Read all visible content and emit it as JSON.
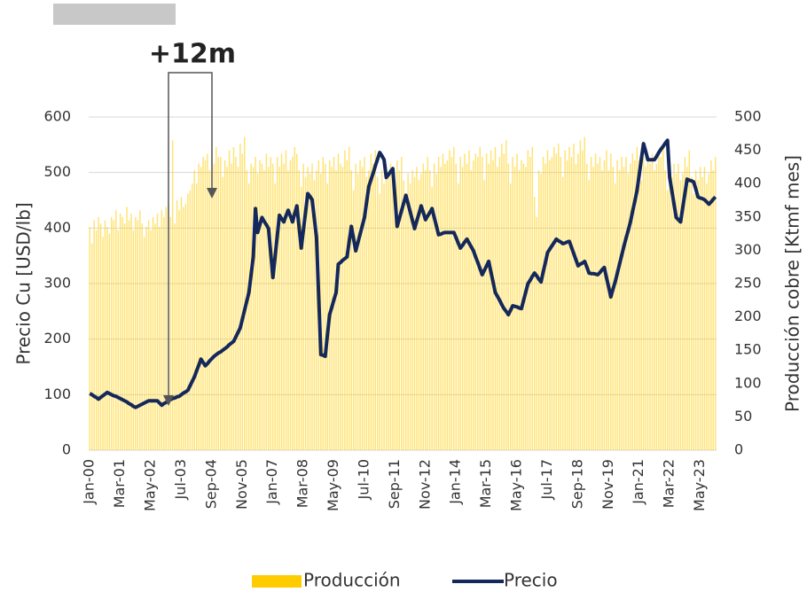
{
  "chart_data": {
    "type": "bar",
    "annotation": "+12m",
    "ylabel": "Precio Cu [USD/lb]",
    "y2label": "Producción cobre [Ktmf mes]",
    "ylim": [
      0,
      600
    ],
    "yticks": [
      0,
      100,
      200,
      300,
      400,
      500,
      600
    ],
    "y2lim": [
      0,
      500
    ],
    "y2ticks": [
      0,
      50,
      100,
      150,
      200,
      250,
      300,
      350,
      400,
      450,
      500
    ],
    "grid": true,
    "legend": "bottom",
    "categories": [
      "Jan-00",
      null,
      null,
      null,
      null,
      null,
      null,
      null,
      null,
      null,
      null,
      null,
      null,
      null,
      "Mar-01",
      null,
      null,
      null,
      null,
      null,
      null,
      null,
      null,
      null,
      null,
      null,
      null,
      null,
      "May-02",
      null,
      null,
      null,
      null,
      null,
      null,
      null,
      null,
      null,
      null,
      null,
      null,
      null,
      "Jul-03",
      null,
      null,
      null,
      null,
      null,
      null,
      null,
      null,
      null,
      null,
      null,
      null,
      null,
      "Sep-04",
      null,
      null,
      null,
      null,
      null,
      null,
      null,
      null,
      null,
      null,
      null,
      null,
      null,
      "Nov-05",
      null,
      null,
      null,
      null,
      null,
      null,
      null,
      null,
      null,
      null,
      null,
      null,
      null,
      "Jan-07",
      null,
      null,
      null,
      null,
      null,
      null,
      null,
      null,
      null,
      null,
      null,
      null,
      null,
      "Mar-08",
      null,
      null,
      null,
      null,
      null,
      null,
      null,
      null,
      null,
      null,
      null,
      null,
      null,
      "May-09",
      null,
      null,
      null,
      null,
      null,
      null,
      null,
      null,
      null,
      null,
      null,
      null,
      null,
      "Jul-10",
      null,
      null,
      null,
      null,
      null,
      null,
      null,
      null,
      null,
      null,
      null,
      null,
      null,
      "Sep-11",
      null,
      null,
      null,
      null,
      null,
      null,
      null,
      null,
      null,
      null,
      null,
      null,
      null,
      "Nov-12",
      null,
      null,
      null,
      null,
      null,
      null,
      null,
      null,
      null,
      null,
      null,
      null,
      null,
      "Jan-14",
      null,
      null,
      null,
      null,
      null,
      null,
      null,
      null,
      null,
      null,
      null,
      null,
      null,
      "Mar-15",
      null,
      null,
      null,
      null,
      null,
      null,
      null,
      null,
      null,
      null,
      null,
      null,
      null,
      "May-16",
      null,
      null,
      null,
      null,
      null,
      null,
      null,
      null,
      null,
      null,
      null,
      null,
      null,
      "Jul-17",
      null,
      null,
      null,
      null,
      null,
      null,
      null,
      null,
      null,
      null,
      null,
      null,
      null,
      "Sep-18",
      null,
      null,
      null,
      null,
      null,
      null,
      null,
      null,
      null,
      null,
      null,
      null,
      null,
      "Nov-19",
      null,
      null,
      null,
      null,
      null,
      null,
      null,
      null,
      null,
      null,
      null,
      null,
      null,
      "Jan-21",
      null,
      null,
      null,
      null,
      null,
      null,
      null,
      null,
      null,
      null,
      null,
      null,
      null,
      "Mar-22",
      null,
      null,
      null,
      null,
      null,
      null,
      null,
      null,
      null,
      null,
      null,
      null,
      null,
      "May-23",
      null,
      null,
      null,
      null,
      null,
      null,
      null
    ],
    "series": [
      {
        "name": "Producción",
        "type": "bar",
        "axis": "y2",
        "color": "#ffcc00",
        "values": [
          335,
          310,
          345,
          330,
          350,
          340,
          320,
          345,
          335,
          325,
          350,
          345,
          360,
          330,
          355,
          350,
          340,
          365,
          345,
          355,
          330,
          350,
          345,
          360,
          340,
          320,
          335,
          345,
          330,
          350,
          340,
          355,
          335,
          360,
          350,
          365,
          370,
          350,
          465,
          340,
          375,
          360,
          380,
          365,
          370,
          385,
          390,
          400,
          420,
          400,
          430,
          425,
          440,
          435,
          445,
          420,
          450,
          430,
          455,
          440,
          440,
          410,
          435,
          425,
          450,
          430,
          455,
          440,
          425,
          460,
          445,
          470,
          420,
          400,
          430,
          425,
          440,
          415,
          435,
          430,
          420,
          445,
          425,
          440,
          430,
          400,
          440,
          425,
          445,
          430,
          450,
          420,
          435,
          440,
          455,
          445,
          420,
          395,
          430,
          410,
          425,
          415,
          430,
          405,
          420,
          435,
          415,
          440,
          430,
          400,
          435,
          425,
          440,
          420,
          445,
          430,
          425,
          450,
          435,
          455,
          420,
          390,
          430,
          415,
          435,
          425,
          440,
          410,
          420,
          445,
          430,
          450,
          410,
          385,
          420,
          400,
          425,
          410,
          430,
          415,
          405,
          435,
          420,
          440,
          405,
          380,
          415,
          400,
          420,
          410,
          425,
          405,
          415,
          430,
          420,
          440,
          420,
          395,
          430,
          415,
          440,
          425,
          445,
          430,
          435,
          450,
          440,
          455,
          430,
          400,
          440,
          425,
          445,
          430,
          450,
          420,
          435,
          445,
          440,
          455,
          440,
          405,
          445,
          430,
          450,
          435,
          455,
          425,
          440,
          460,
          445,
          465,
          430,
          400,
          440,
          425,
          445,
          420,
          435,
          430,
          425,
          450,
          440,
          455,
          380,
          350,
          420,
          415,
          440,
          430,
          450,
          435,
          440,
          455,
          445,
          460,
          440,
          410,
          450,
          435,
          455,
          440,
          460,
          430,
          445,
          465,
          450,
          470,
          430,
          405,
          440,
          425,
          445,
          430,
          440,
          420,
          435,
          450,
          420,
          445,
          425,
          400,
          435,
          420,
          440,
          425,
          440,
          415,
          430,
          445,
          435,
          455,
          435,
          405,
          440,
          425,
          440,
          430,
          445,
          420,
          430,
          450,
          440,
          455,
          420,
          390,
          425,
          410,
          430,
          415,
          430,
          405,
          415,
          440,
          425,
          450,
          410,
          385,
          420,
          405,
          425,
          410,
          425,
          400,
          415,
          435,
          420,
          440
        ]
      },
      {
        "name": "Precio",
        "type": "line",
        "color": "#14285a",
        "values": [
          102,
          100,
          97,
          95,
          92,
          95,
          98,
          101,
          104,
          102,
          100,
          98,
          97,
          95,
          93,
          91,
          89,
          87,
          84,
          82,
          79,
          77,
          79,
          81,
          83,
          85,
          87,
          89,
          89,
          89,
          89,
          89,
          85,
          81,
          84,
          86,
          89,
          91,
          93,
          94,
          96,
          97,
          100,
          103,
          105,
          108,
          116,
          124,
          132,
          143,
          153,
          164,
          158,
          152,
          156,
          161,
          165,
          169,
          172,
          175,
          177,
          180,
          183,
          186,
          190,
          193,
          196,
          204,
          212,
          220,
          236,
          252,
          268,
          284,
          316,
          348,
          435,
          392,
          406,
          419,
          412,
          406,
          399,
          355,
          311,
          348,
          386,
          423,
          417,
          411,
          422,
          432,
          422,
          411,
          426,
          440,
          402,
          364,
          397,
          429,
          462,
          457,
          451,
          417,
          383,
          278,
          172,
          171,
          169,
          207,
          244,
          257,
          271,
          284,
          335,
          338,
          342,
          345,
          348,
          376,
          403,
          381,
          359,
          374,
          389,
          404,
          419,
          447,
          475,
          487,
          499,
          512,
          524,
          536,
          530,
          523,
          491,
          496,
          502,
          507,
          455,
          403,
          417,
          431,
          445,
          459,
          444,
          429,
          414,
          399,
          413,
          426,
          440,
          428,
          415,
          422,
          428,
          435,
          419,
          404,
          388,
          389,
          391,
          392,
          392,
          392,
          392,
          392,
          383,
          373,
          364,
          369,
          375,
          380,
          373,
          366,
          359,
          348,
          338,
          327,
          316,
          324,
          332,
          340,
          321,
          303,
          284,
          277,
          270,
          262,
          255,
          250,
          244,
          252,
          260,
          259,
          258,
          256,
          255,
          270,
          285,
          300,
          306,
          313,
          319,
          314,
          308,
          303,
          321,
          338,
          356,
          362,
          368,
          374,
          380,
          377,
          375,
          372,
          373,
          375,
          376,
          365,
          354,
          343,
          332,
          335,
          337,
          340,
          330,
          319,
          318,
          318,
          317,
          316,
          320,
          325,
          329,
          311,
          294,
          276,
          290,
          303,
          319,
          335,
          351,
          367,
          382,
          396,
          411,
          430,
          448,
          467,
          495,
          524,
          552,
          538,
          523,
          523,
          523,
          523,
          529,
          536,
          542,
          547,
          553,
          558,
          491,
          467,
          443,
          419,
          415,
          411,
          437,
          462,
          488,
          486,
          485,
          483,
          470,
          456,
          454,
          453,
          451,
          447,
          443,
          447,
          452,
          456
        ]
      }
    ]
  }
}
